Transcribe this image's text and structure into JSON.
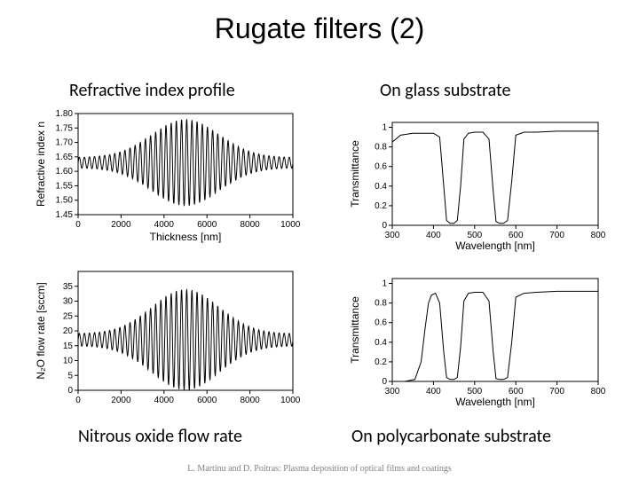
{
  "title": "Rugate filters (2)",
  "captions": {
    "tl": "Refractive index profile",
    "tr": "On glass substrate",
    "bl": "Nitrous oxide flow rate",
    "br": "On polycarbonate substrate"
  },
  "footer": "L. Martinu and D. Poitras: Plasma deposition of optical films and coatings",
  "colors": {
    "background": "#ffffff",
    "line": "#000000",
    "text": "#000000",
    "footer": "#808080",
    "frame": "#000000"
  },
  "chart_tl": {
    "type": "line",
    "xlabel": "Thickness [nm]",
    "ylabel": "Refractive index n",
    "xlim": [
      0,
      10000
    ],
    "ylim": [
      1.45,
      1.8
    ],
    "xticks": [
      0,
      2000,
      4000,
      6000,
      8000,
      10000
    ],
    "yticks": [
      1.45,
      1.5,
      1.55,
      1.6,
      1.65,
      1.7,
      1.75,
      1.8
    ],
    "line_color": "#000000",
    "data": {
      "comment": "oscillation about 1.63 with envelope peaking mid-range",
      "mean": 1.63,
      "max_amp": 0.15,
      "n_cycles": 42
    }
  },
  "chart_bl": {
    "type": "line",
    "xlabel": "",
    "ylabel": "N₂O flow rate [sccm]",
    "xlim": [
      0,
      10000
    ],
    "ylim": [
      0,
      40
    ],
    "xticks": [
      0,
      2000,
      4000,
      6000,
      8000,
      10000
    ],
    "yticks": [
      0,
      5,
      10,
      15,
      20,
      25,
      30,
      35
    ],
    "line_color": "#000000",
    "data": {
      "mean": 17,
      "max_amp": 17,
      "n_cycles": 42
    }
  },
  "chart_tr": {
    "type": "line",
    "xlabel": "Wavelength [nm]",
    "ylabel": "Transmittance",
    "xlim": [
      300,
      800
    ],
    "ylim": [
      0,
      1.05
    ],
    "xticks": [
      300,
      400,
      500,
      600,
      700,
      800
    ],
    "yticks": [
      0.0,
      0.2,
      0.4,
      0.6,
      0.8,
      1.0
    ],
    "line_color": "#000000",
    "points": [
      [
        300,
        0.85
      ],
      [
        320,
        0.92
      ],
      [
        350,
        0.94
      ],
      [
        380,
        0.94
      ],
      [
        400,
        0.94
      ],
      [
        415,
        0.9
      ],
      [
        425,
        0.4
      ],
      [
        432,
        0.05
      ],
      [
        440,
        0.02
      ],
      [
        450,
        0.02
      ],
      [
        458,
        0.05
      ],
      [
        466,
        0.4
      ],
      [
        474,
        0.88
      ],
      [
        485,
        0.94
      ],
      [
        500,
        0.95
      ],
      [
        520,
        0.95
      ],
      [
        535,
        0.88
      ],
      [
        545,
        0.35
      ],
      [
        552,
        0.04
      ],
      [
        560,
        0.02
      ],
      [
        570,
        0.02
      ],
      [
        580,
        0.05
      ],
      [
        590,
        0.45
      ],
      [
        600,
        0.92
      ],
      [
        620,
        0.95
      ],
      [
        650,
        0.95
      ],
      [
        700,
        0.96
      ],
      [
        750,
        0.96
      ],
      [
        800,
        0.96
      ]
    ]
  },
  "chart_br": {
    "type": "line",
    "xlabel": "Wavelength [nm]",
    "ylabel": "Transmittance",
    "xlim": [
      300,
      800
    ],
    "ylim": [
      0,
      1.05
    ],
    "xticks": [
      300,
      400,
      500,
      600,
      700,
      800
    ],
    "yticks": [
      0.0,
      0.2,
      0.4,
      0.6,
      0.8,
      1.0
    ],
    "line_color": "#000000",
    "points": [
      [
        300,
        0.0
      ],
      [
        330,
        0.0
      ],
      [
        355,
        0.02
      ],
      [
        370,
        0.2
      ],
      [
        380,
        0.55
      ],
      [
        388,
        0.8
      ],
      [
        395,
        0.88
      ],
      [
        405,
        0.9
      ],
      [
        415,
        0.8
      ],
      [
        425,
        0.3
      ],
      [
        432,
        0.04
      ],
      [
        440,
        0.02
      ],
      [
        450,
        0.02
      ],
      [
        458,
        0.04
      ],
      [
        466,
        0.35
      ],
      [
        474,
        0.82
      ],
      [
        485,
        0.9
      ],
      [
        500,
        0.91
      ],
      [
        520,
        0.91
      ],
      [
        535,
        0.82
      ],
      [
        545,
        0.3
      ],
      [
        552,
        0.03
      ],
      [
        560,
        0.02
      ],
      [
        570,
        0.02
      ],
      [
        580,
        0.04
      ],
      [
        590,
        0.4
      ],
      [
        600,
        0.86
      ],
      [
        620,
        0.9
      ],
      [
        650,
        0.91
      ],
      [
        700,
        0.92
      ],
      [
        750,
        0.92
      ],
      [
        800,
        0.92
      ]
    ]
  }
}
